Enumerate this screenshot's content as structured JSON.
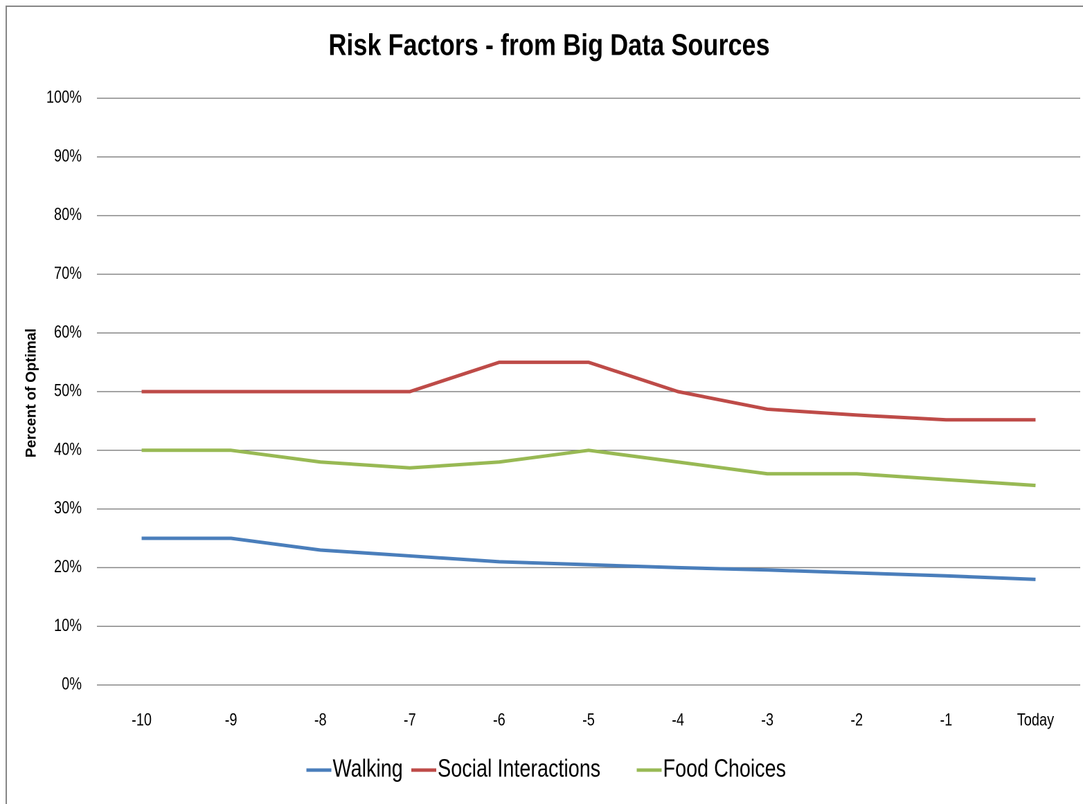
{
  "chart_data": {
    "type": "line",
    "title": "Risk Factors - from Big Data Sources",
    "y_label": "Percent of Optimal",
    "categories": [
      "-10",
      "-9",
      "-8",
      "-7",
      "-6",
      "-5",
      "-4",
      "-3",
      "-2",
      "-1",
      "Today"
    ],
    "series": [
      {
        "name": "Walking",
        "color": "#4a7ebb",
        "values": [
          25,
          25,
          23,
          22,
          21,
          20.5,
          20,
          19.6,
          19.1,
          18.6,
          18
        ]
      },
      {
        "name": "Social Interactions",
        "color": "#be4b48",
        "values": [
          50,
          50,
          50,
          50,
          55,
          55,
          50,
          47,
          46,
          45.2,
          45.2
        ]
      },
      {
        "name": "Food Choices",
        "color": "#98b954",
        "values": [
          40,
          40,
          38,
          37,
          38,
          40,
          38,
          36,
          36,
          35,
          34
        ]
      }
    ],
    "ylim": [
      0,
      100
    ],
    "yticks": [
      {
        "value": 0,
        "label": "0%"
      },
      {
        "value": 10,
        "label": "10%"
      },
      {
        "value": 20,
        "label": "20%"
      },
      {
        "value": 30,
        "label": "30%"
      },
      {
        "value": 40,
        "label": "40%"
      },
      {
        "value": 50,
        "label": "50%"
      },
      {
        "value": 60,
        "label": "60%"
      },
      {
        "value": 70,
        "label": "70%"
      },
      {
        "value": 80,
        "label": "80%"
      },
      {
        "value": 90,
        "label": "90%"
      },
      {
        "value": 100,
        "label": "100%"
      }
    ],
    "grid": true,
    "legend": "bottom"
  }
}
